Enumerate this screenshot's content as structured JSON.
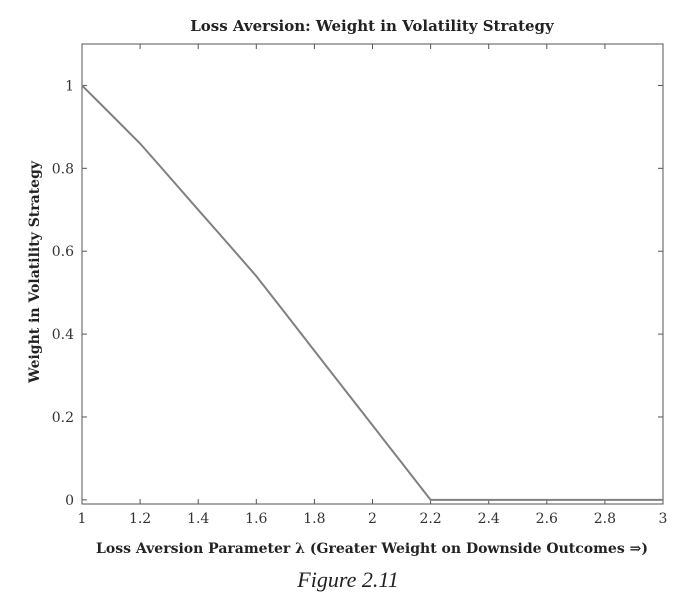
{
  "chart_data": {
    "type": "line",
    "title": "Loss Aversion: Weight in Volatility Strategy",
    "xlabel": "Loss Aversion Parameter λ (Greater Weight on Downside Outcomes ⇒)",
    "ylabel": "Weight in Volatility Strategy",
    "xlim": [
      1,
      3
    ],
    "ylim": [
      -0.01,
      1.1
    ],
    "x_ticks": [
      "1",
      "1.2",
      "1.4",
      "1.6",
      "1.8",
      "2",
      "2.2",
      "2.4",
      "2.6",
      "2.8",
      "3"
    ],
    "y_ticks": [
      "0",
      "0.2",
      "0.4",
      "0.6",
      "0.8",
      "1"
    ],
    "grid": false,
    "series": [
      {
        "x": [
          1.0,
          1.1,
          1.2,
          1.3,
          1.4,
          1.5,
          1.6,
          1.7,
          1.8,
          1.9,
          2.0,
          2.1,
          2.2,
          2.3,
          2.4,
          2.5,
          2.6,
          2.7,
          2.8,
          2.9,
          3.0
        ],
        "y": [
          1.0,
          0.93,
          0.86,
          0.78,
          0.7,
          0.62,
          0.54,
          0.45,
          0.36,
          0.27,
          0.18,
          0.09,
          0.0,
          0.0,
          0.0,
          0.0,
          0.0,
          0.0,
          0.0,
          0.0,
          0.0
        ],
        "color": "#808080"
      }
    ]
  },
  "caption": "Figure 2.11"
}
